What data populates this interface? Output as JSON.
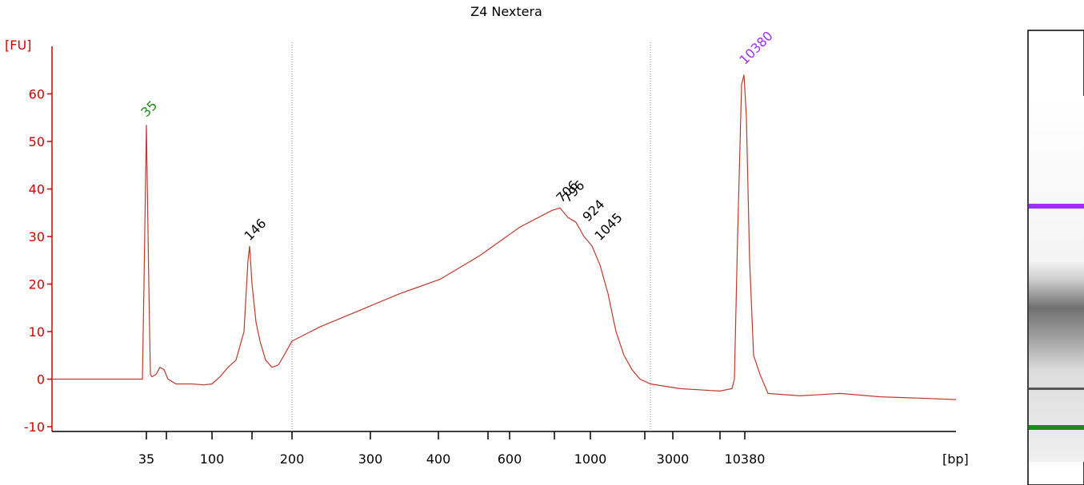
{
  "chart_data": {
    "type": "line",
    "title": "Z4 Nextera",
    "ylabel": "[FU]",
    "xlabel": "[bp]",
    "xlim": [
      0,
      1130
    ],
    "ylim": [
      -11,
      70
    ],
    "yticks": [
      -10,
      0,
      10,
      20,
      30,
      40,
      50,
      60
    ],
    "xticks": [
      {
        "value": 118,
        "label": "35"
      },
      {
        "value": 143,
        "label": null
      },
      {
        "value": 200,
        "label": "100"
      },
      {
        "value": 250,
        "label": null
      },
      {
        "value": 300,
        "label": "200"
      },
      {
        "value": 398,
        "label": "300"
      },
      {
        "value": 483,
        "label": "400"
      },
      {
        "value": 545,
        "label": null
      },
      {
        "value": 572,
        "label": "600"
      },
      {
        "value": 628,
        "label": null
      },
      {
        "value": 673,
        "label": "1000"
      },
      {
        "value": 741,
        "label": null
      },
      {
        "value": 776,
        "label": "3000"
      },
      {
        "value": 835,
        "label": null
      },
      {
        "value": 866,
        "label": "10380"
      }
    ],
    "vlines": [
      300,
      748
    ],
    "series": [
      {
        "color": "#c0392b",
        "x": [
          0,
          80,
          113,
          115,
          118,
          121,
          123,
          125,
          130,
          135,
          140,
          145,
          155,
          175,
          190,
          200,
          210,
          220,
          230,
          240,
          245,
          247,
          250,
          255,
          260,
          267,
          275,
          283,
          290,
          300,
          335,
          385,
          435,
          485,
          535,
          585,
          625,
          635,
          645,
          655,
          665,
          675,
          685,
          695,
          705,
          715,
          725,
          735,
          748,
          785,
          835,
          850,
          853,
          857,
          862,
          865,
          868,
          872,
          877,
          885,
          895,
          935,
          985,
          1035,
          1085,
          1130
        ],
        "values": [
          0,
          0,
          0,
          20,
          53.5,
          20,
          1,
          0.5,
          1,
          2.5,
          2,
          0,
          -1,
          -1,
          -1.2,
          -1,
          0.5,
          2.5,
          4,
          10,
          25,
          28,
          20,
          12,
          8,
          4,
          2.5,
          3,
          5,
          8,
          11,
          14.5,
          18,
          21,
          26,
          32,
          35.5,
          36,
          34,
          33,
          30,
          28,
          24,
          18,
          10,
          5,
          2,
          0,
          -1,
          -2,
          -2.5,
          -2,
          0,
          30,
          62,
          64,
          55,
          25,
          5,
          1,
          -3,
          -3.5,
          -3,
          -3.7,
          -4,
          -4.3
        ]
      }
    ],
    "annotations": [
      {
        "text": "35",
        "x": 118,
        "y": 55,
        "color": "#1a8a1a"
      },
      {
        "text": "146",
        "x": 247,
        "y": 29,
        "color": "#000000"
      },
      {
        "text": "706",
        "x": 637,
        "y": 37,
        "color": "#000000"
      },
      {
        "text": "796",
        "x": 645,
        "y": 37,
        "color": "#000000"
      },
      {
        "text": "924",
        "x": 670,
        "y": 33,
        "color": "#000000"
      },
      {
        "text": "1045",
        "x": 685,
        "y": 29,
        "color": "#000000"
      },
      {
        "text": "10380",
        "x": 866,
        "y": 66,
        "color": "#9b30ff"
      }
    ]
  }
}
